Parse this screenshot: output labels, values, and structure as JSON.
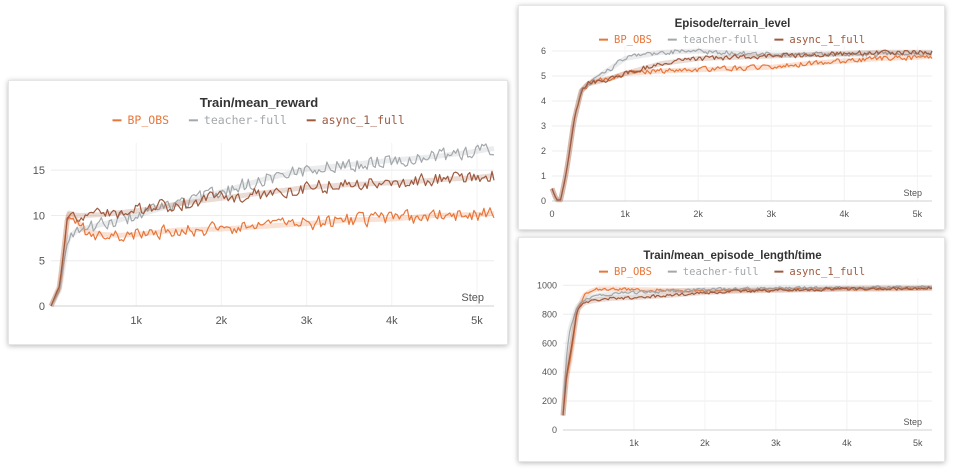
{
  "chart_data": [
    {
      "id": "mean_reward",
      "type": "line",
      "title": "Train/mean_reward",
      "xlabel": "Step",
      "ylabel": "",
      "xlim": [
        0,
        5200
      ],
      "ylim": [
        0,
        18
      ],
      "x_ticks": [
        1000,
        2000,
        3000,
        4000,
        5000
      ],
      "x_tick_labels": [
        "1k",
        "2k",
        "3k",
        "4k",
        "5k"
      ],
      "y_ticks": [
        0,
        5,
        10,
        15
      ],
      "y_tick_labels": [
        "0",
        "5",
        "10",
        "15"
      ],
      "grid": true,
      "legend_position": "top-center",
      "series": [
        {
          "name": "BP_OBS",
          "color": "#e8763a",
          "x": [
            0,
            100,
            200,
            300,
            400,
            600,
            800,
            1000,
            1500,
            2000,
            2500,
            3000,
            3500,
            4000,
            4500,
            5000,
            5200
          ],
          "y": [
            0,
            2,
            10.2,
            9.5,
            8.3,
            7.9,
            7.8,
            7.9,
            8.4,
            8.5,
            8.8,
            9.1,
            9.5,
            9.6,
            10.0,
            10.1,
            10.2
          ]
        },
        {
          "name": "teacher-full",
          "color": "#a3a8ab",
          "x": [
            0,
            100,
            200,
            300,
            400,
            600,
            800,
            1000,
            1500,
            2000,
            2500,
            3000,
            3500,
            4000,
            4500,
            5000,
            5200
          ],
          "y": [
            0,
            1.8,
            7.5,
            8.3,
            8.6,
            9.0,
            9.5,
            10.0,
            11.3,
            12.6,
            14.0,
            15.1,
            15.6,
            16.1,
            16.5,
            17.1,
            17.4
          ]
        },
        {
          "name": "async_1_full",
          "color": "#9e5a3f",
          "x": [
            0,
            100,
            200,
            300,
            400,
            600,
            800,
            1000,
            1500,
            2000,
            2500,
            3000,
            3500,
            4000,
            4500,
            5000,
            5200
          ],
          "y": [
            0,
            2.2,
            10.3,
            10.0,
            10.0,
            10.1,
            10.3,
            10.5,
            11.3,
            11.9,
            12.5,
            13.1,
            13.4,
            13.6,
            13.9,
            14.2,
            14.4
          ]
        }
      ]
    },
    {
      "id": "terrain_level",
      "type": "line",
      "title": "Episode/terrain_level",
      "xlabel": "Step",
      "ylabel": "",
      "xlim": [
        0,
        5200
      ],
      "ylim": [
        0,
        6.2
      ],
      "x_ticks": [
        0,
        1000,
        2000,
        3000,
        4000,
        5000
      ],
      "x_tick_labels": [
        "0",
        "1k",
        "2k",
        "3k",
        "4k",
        "5k"
      ],
      "y_ticks": [
        0,
        1,
        2,
        3,
        4,
        5,
        6
      ],
      "y_tick_labels": [
        "0",
        "1",
        "2",
        "3",
        "4",
        "5",
        "6"
      ],
      "grid": true,
      "legend_position": "top-center",
      "series": [
        {
          "name": "BP_OBS",
          "color": "#e8763a",
          "x": [
            0,
            60,
            120,
            200,
            300,
            400,
            500,
            600,
            800,
            1000,
            1500,
            2000,
            2500,
            3000,
            3500,
            4000,
            4500,
            5000,
            5200
          ],
          "y": [
            0.5,
            0.05,
            0.05,
            1.2,
            3.2,
            4.4,
            4.7,
            4.8,
            4.9,
            5.1,
            5.2,
            5.25,
            5.3,
            5.35,
            5.5,
            5.6,
            5.7,
            5.75,
            5.8
          ]
        },
        {
          "name": "teacher-full",
          "color": "#a3a8ab",
          "x": [
            0,
            60,
            120,
            200,
            300,
            400,
            500,
            600,
            800,
            1000,
            1500,
            2000,
            2500,
            3000,
            3500,
            4000,
            4500,
            5000,
            5200
          ],
          "y": [
            0.5,
            0.05,
            0.05,
            1.2,
            3.2,
            4.4,
            4.7,
            4.9,
            5.3,
            5.7,
            5.95,
            6.0,
            5.9,
            5.85,
            5.85,
            5.85,
            5.9,
            5.9,
            5.9
          ]
        },
        {
          "name": "async_1_full",
          "color": "#9e5a3f",
          "x": [
            0,
            60,
            120,
            200,
            300,
            400,
            500,
            600,
            800,
            1000,
            1500,
            2000,
            2500,
            3000,
            3500,
            4000,
            4500,
            5000,
            5200
          ],
          "y": [
            0.5,
            0.05,
            0.05,
            1.2,
            3.2,
            4.4,
            4.7,
            4.75,
            4.9,
            5.1,
            5.5,
            5.7,
            5.75,
            5.8,
            5.85,
            5.9,
            5.95,
            5.95,
            5.95
          ]
        }
      ]
    },
    {
      "id": "mean_episode_length",
      "type": "line",
      "title": "Train/mean_episode_length/time",
      "xlabel": "Step",
      "ylabel": "",
      "xlim": [
        0,
        5200
      ],
      "ylim": [
        0,
        1050
      ],
      "x_ticks": [
        1000,
        2000,
        3000,
        4000,
        5000
      ],
      "x_tick_labels": [
        "1k",
        "2k",
        "3k",
        "4k",
        "5k"
      ],
      "y_ticks": [
        0,
        200,
        400,
        600,
        800,
        1000
      ],
      "y_tick_labels": [
        "0",
        "200",
        "400",
        "600",
        "800",
        "1000"
      ],
      "grid": true,
      "legend_position": "top-center",
      "series": [
        {
          "name": "BP_OBS",
          "color": "#e8763a",
          "x": [
            0,
            50,
            100,
            200,
            300,
            400,
            500,
            700,
            1000,
            1500,
            2000,
            2500,
            3000,
            3500,
            4000,
            4500,
            5000,
            5200
          ],
          "y": [
            100,
            360,
            480,
            820,
            930,
            960,
            975,
            975,
            970,
            965,
            960,
            965,
            970,
            970,
            975,
            975,
            978,
            980
          ]
        },
        {
          "name": "teacher-full",
          "color": "#a3a8ab",
          "x": [
            0,
            50,
            100,
            200,
            300,
            400,
            500,
            700,
            1000,
            1500,
            2000,
            2500,
            3000,
            3500,
            4000,
            4500,
            5000,
            5200
          ],
          "y": [
            100,
            520,
            700,
            850,
            900,
            920,
            930,
            940,
            950,
            960,
            970,
            975,
            980,
            980,
            980,
            985,
            985,
            985
          ]
        },
        {
          "name": "async_1_full",
          "color": "#9e5a3f",
          "x": [
            0,
            50,
            100,
            200,
            300,
            400,
            500,
            700,
            1000,
            1500,
            2000,
            2500,
            3000,
            3500,
            4000,
            4500,
            5000,
            5200
          ],
          "y": [
            100,
            380,
            520,
            830,
            880,
            890,
            900,
            910,
            915,
            930,
            950,
            960,
            965,
            970,
            975,
            975,
            978,
            980
          ]
        }
      ]
    }
  ]
}
